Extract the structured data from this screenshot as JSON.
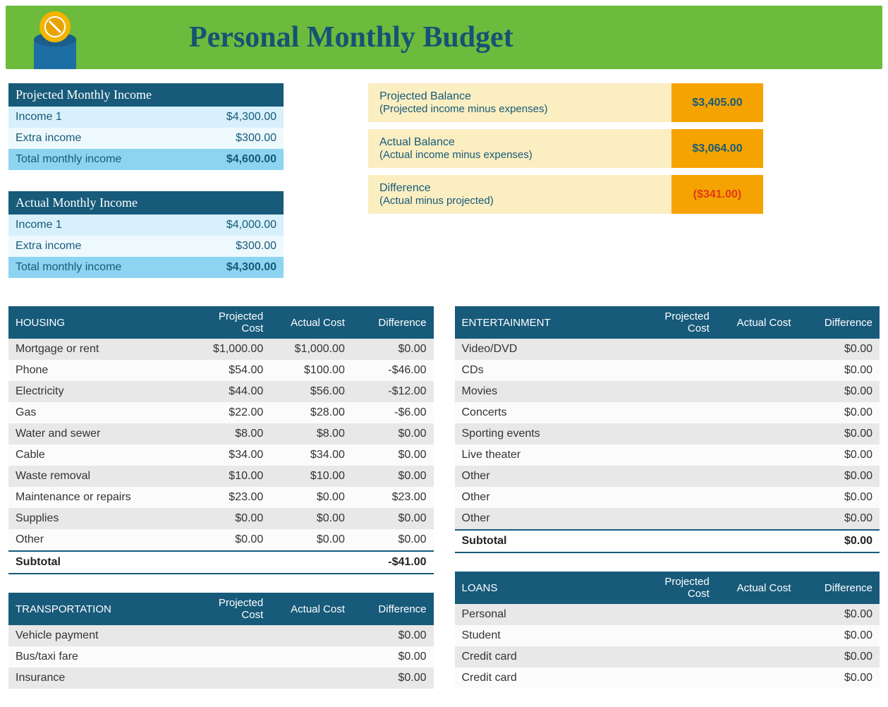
{
  "colors": {
    "banner_bg": "#6cbb3c",
    "banner_title": "#145374",
    "teal": "#175a7a",
    "inc_row_a": "#d7f0fb",
    "inc_row_b": "#eef9fe",
    "inc_row_total": "#8dd4f2",
    "bal_label_bg": "#fbeec1",
    "bal_value_bg": "#f5a300",
    "neg": "#e03a1a",
    "row_odd": "#e8e8e8",
    "row_even": "#fbfbfb",
    "coin_outer": "#f4b400",
    "coin_inner": "#e8a200",
    "coin_slot": "#1c6ea4"
  },
  "title": "Personal Monthly Budget",
  "projected_income": {
    "heading": "Projected Monthly Income",
    "rows": [
      {
        "label": "Income 1",
        "value": "$4,300.00"
      },
      {
        "label": "Extra income",
        "value": "$300.00"
      }
    ],
    "total_label": "Total monthly income",
    "total_value": "$4,600.00"
  },
  "actual_income": {
    "heading": "Actual Monthly Income",
    "rows": [
      {
        "label": "Income 1",
        "value": "$4,000.00"
      },
      {
        "label": "Extra income",
        "value": "$300.00"
      }
    ],
    "total_label": "Total monthly income",
    "total_value": "$4,300.00"
  },
  "balances": [
    {
      "title": "Projected Balance",
      "sub": "(Projected income minus expenses)",
      "value": "$3,405.00",
      "neg": false
    },
    {
      "title": "Actual Balance",
      "sub": "(Actual income minus expenses)",
      "value": "$3,064.00",
      "neg": false
    },
    {
      "title": "Difference",
      "sub": "(Actual minus projected)",
      "value": "($341.00)",
      "neg": true
    }
  ],
  "column_headers": {
    "projected": "Projected Cost",
    "actual": "Actual Cost",
    "diff": "Difference"
  },
  "subtotal_label": "Subtotal",
  "left_tables": [
    {
      "name": "HOUSING",
      "rows": [
        {
          "label": "Mortgage or rent",
          "proj": "$1,000.00",
          "act": "$1,000.00",
          "diff": "$0.00"
        },
        {
          "label": "Phone",
          "proj": "$54.00",
          "act": "$100.00",
          "diff": "-$46.00"
        },
        {
          "label": "Electricity",
          "proj": "$44.00",
          "act": "$56.00",
          "diff": "-$12.00"
        },
        {
          "label": "Gas",
          "proj": "$22.00",
          "act": "$28.00",
          "diff": "-$6.00"
        },
        {
          "label": "Water and sewer",
          "proj": "$8.00",
          "act": "$8.00",
          "diff": "$0.00"
        },
        {
          "label": "Cable",
          "proj": "$34.00",
          "act": "$34.00",
          "diff": "$0.00"
        },
        {
          "label": "Waste removal",
          "proj": "$10.00",
          "act": "$10.00",
          "diff": "$0.00"
        },
        {
          "label": "Maintenance or repairs",
          "proj": "$23.00",
          "act": "$0.00",
          "diff": "$23.00"
        },
        {
          "label": "Supplies",
          "proj": "$0.00",
          "act": "$0.00",
          "diff": "$0.00"
        },
        {
          "label": "Other",
          "proj": "$0.00",
          "act": "$0.00",
          "diff": "$0.00"
        }
      ],
      "subtotal": "-$41.00"
    },
    {
      "name": "TRANSPORTATION",
      "rows": [
        {
          "label": "Vehicle payment",
          "proj": "",
          "act": "",
          "diff": "$0.00"
        },
        {
          "label": "Bus/taxi fare",
          "proj": "",
          "act": "",
          "diff": "$0.00"
        },
        {
          "label": "Insurance",
          "proj": "",
          "act": "",
          "diff": "$0.00"
        }
      ],
      "subtotal": null
    }
  ],
  "right_tables": [
    {
      "name": "ENTERTAINMENT",
      "rows": [
        {
          "label": "Video/DVD",
          "proj": "",
          "act": "",
          "diff": "$0.00"
        },
        {
          "label": "CDs",
          "proj": "",
          "act": "",
          "diff": "$0.00"
        },
        {
          "label": "Movies",
          "proj": "",
          "act": "",
          "diff": "$0.00"
        },
        {
          "label": "Concerts",
          "proj": "",
          "act": "",
          "diff": "$0.00"
        },
        {
          "label": "Sporting events",
          "proj": "",
          "act": "",
          "diff": "$0.00"
        },
        {
          "label": "Live theater",
          "proj": "",
          "act": "",
          "diff": "$0.00"
        },
        {
          "label": "Other",
          "proj": "",
          "act": "",
          "diff": "$0.00"
        },
        {
          "label": "Other",
          "proj": "",
          "act": "",
          "diff": "$0.00"
        },
        {
          "label": "Other",
          "proj": "",
          "act": "",
          "diff": "$0.00"
        }
      ],
      "subtotal": "$0.00"
    },
    {
      "name": "LOANS",
      "rows": [
        {
          "label": "Personal",
          "proj": "",
          "act": "",
          "diff": "$0.00"
        },
        {
          "label": "Student",
          "proj": "",
          "act": "",
          "diff": "$0.00"
        },
        {
          "label": "Credit card",
          "proj": "",
          "act": "",
          "diff": "$0.00"
        },
        {
          "label": "Credit card",
          "proj": "",
          "act": "",
          "diff": "$0.00"
        }
      ],
      "subtotal": null
    }
  ]
}
